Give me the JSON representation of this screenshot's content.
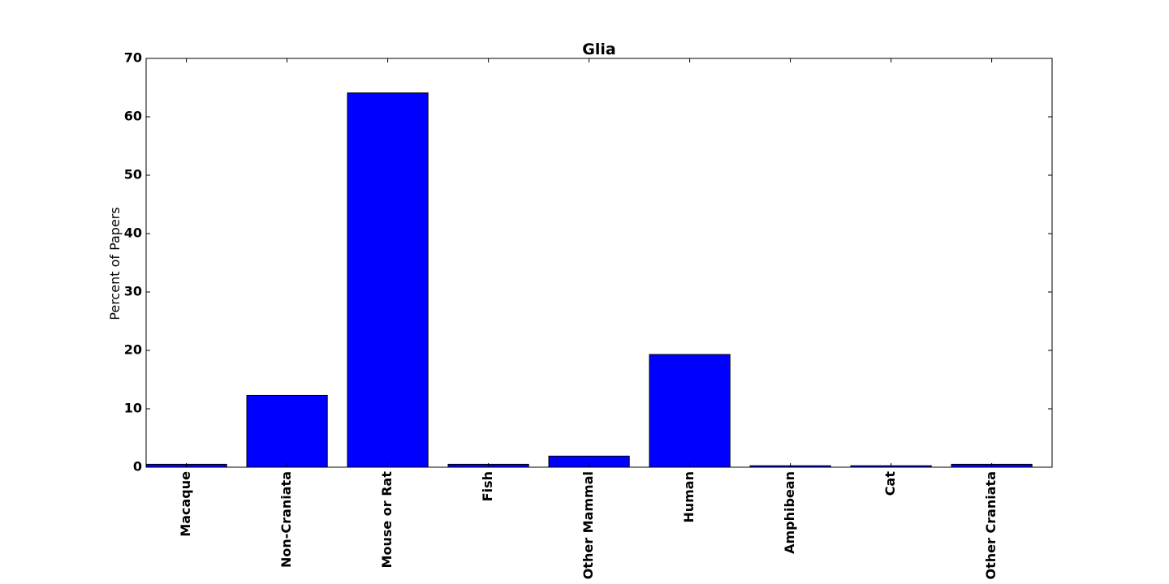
{
  "chart_data": {
    "type": "bar",
    "title": "Glia",
    "xlabel": "",
    "ylabel": "Percent of Papers",
    "categories": [
      "Macaque",
      "Non-Craniata",
      "Mouse or Rat",
      "Fish",
      "Other Mammal",
      "Human",
      "Amphibean",
      "Cat",
      "Other Craniata"
    ],
    "values": [
      0.5,
      12.3,
      64.1,
      0.5,
      1.9,
      19.3,
      0.25,
      0.25,
      0.5
    ],
    "ylim": [
      0,
      70
    ],
    "yticks": [
      "0",
      "10",
      "20",
      "30",
      "40",
      "50",
      "60",
      "70"
    ],
    "grid": false,
    "legend": "none",
    "bar_color": "#0000ff",
    "edge_color": "#000000"
  }
}
